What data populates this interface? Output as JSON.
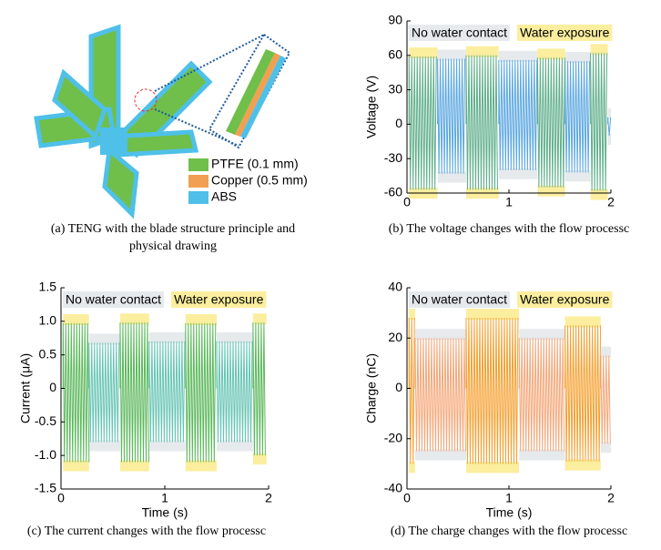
{
  "diagram": {
    "legend": [
      {
        "label": "PTFE (0.1 mm)",
        "color": "#6fbf4a"
      },
      {
        "label": "Copper (0.5 mm)",
        "color": "#f0a050"
      },
      {
        "label": "ABS",
        "color": "#4fc0e8"
      }
    ],
    "caption": [
      "(a) TENG with the blade structure principle and",
      "physical drawing"
    ]
  },
  "chart_data": [
    {
      "type": "envelope",
      "caption": "(b) The voltage changes with the flow processc",
      "ylabel": "Voltage (V)",
      "xlim": [
        0,
        2
      ],
      "xticks": [
        0,
        1,
        2
      ],
      "ylim": [
        -60,
        90
      ],
      "yticks": [
        -60,
        -30,
        0,
        30,
        60,
        90
      ],
      "series": [
        {
          "name": "No water contact",
          "color": "#5aa6e0",
          "shade": "#e6eaed",
          "segments": [
            {
              "x": [
                0.3,
                0.58
              ],
              "high": 57,
              "low": -43
            },
            {
              "x": [
                0.9,
                1.28
              ],
              "high": 56,
              "low": -40
            },
            {
              "x": [
                1.55,
                1.8
              ],
              "high": 55,
              "low": -42
            },
            {
              "x": [
                1.97,
                2.0
              ],
              "high": 6,
              "low": -10
            }
          ]
        },
        {
          "name": "Water exposure",
          "color": "#5fae8a",
          "shade": "#fbee9e",
          "segments": [
            {
              "x": [
                0.02,
                0.3
              ],
              "high": 59,
              "low": -57
            },
            {
              "x": [
                0.58,
                0.9
              ],
              "high": 60,
              "low": -57
            },
            {
              "x": [
                1.28,
                1.55
              ],
              "high": 58,
              "low": -55
            },
            {
              "x": [
                1.8,
                1.97
              ],
              "high": 62,
              "low": -58
            }
          ]
        }
      ]
    },
    {
      "type": "envelope",
      "caption": "(c) The current changes with the flow processc",
      "ylabel": "Current (μA)",
      "xlabel": "Time (s)",
      "xlim": [
        0,
        2
      ],
      "xticks": [
        0,
        1,
        2
      ],
      "ylim": [
        -1.5,
        1.5
      ],
      "yticks": [
        -1.5,
        {
          "value": -1,
          "label": "-1.0"
        },
        -0.5,
        0,
        0.5,
        {
          "value": 1,
          "label": "1.0"
        },
        1.5
      ],
      "series": [
        {
          "name": "No water contact",
          "color": "#66c4b4",
          "shade": "#e6eaed",
          "segments": [
            {
              "x": [
                0.27,
                0.57
              ],
              "high": 0.68,
              "low": -0.8
            },
            {
              "x": [
                0.85,
                1.2
              ],
              "high": 0.7,
              "low": -0.8
            },
            {
              "x": [
                1.5,
                1.85
              ],
              "high": 0.7,
              "low": -0.8
            }
          ]
        },
        {
          "name": "Water exposure",
          "color": "#5cb85c",
          "shade": "#fbee9e",
          "segments": [
            {
              "x": [
                0.02,
                0.27
              ],
              "high": 0.97,
              "low": -1.1
            },
            {
              "x": [
                0.57,
                0.85
              ],
              "high": 0.98,
              "low": -1.1
            },
            {
              "x": [
                1.2,
                1.5
              ],
              "high": 0.97,
              "low": -1.1
            },
            {
              "x": [
                1.85,
                1.98
              ],
              "high": 0.98,
              "low": -1.0
            }
          ]
        }
      ]
    },
    {
      "type": "envelope",
      "caption": "(d) The charge changes with the flow processc",
      "ylabel": "Charge (nC)",
      "xlabel": "Time (s)",
      "xlim": [
        0,
        2
      ],
      "xticks": [
        0,
        1,
        2
      ],
      "ylim": [
        -40,
        40
      ],
      "yticks": [
        -40,
        -20,
        0,
        20,
        40
      ],
      "series": [
        {
          "name": "No water contact",
          "color": "#f4a77a",
          "shade": "#e6eaed",
          "segments": [
            {
              "x": [
                0.08,
                0.58
              ],
              "high": 20,
              "low": -25
            },
            {
              "x": [
                1.1,
                1.55
              ],
              "high": 20,
              "low": -25
            },
            {
              "x": [
                1.9,
                2.0
              ],
              "high": 13,
              "low": -22
            }
          ]
        },
        {
          "name": "Water exposure",
          "color": "#f5a030",
          "shade": "#fbee9e",
          "segments": [
            {
              "x": [
                0.02,
                0.08
              ],
              "high": 28,
              "low": -30
            },
            {
              "x": [
                0.58,
                1.1
              ],
              "high": 28,
              "low": -30
            },
            {
              "x": [
                1.55,
                1.9
              ],
              "high": 25,
              "low": -29
            }
          ]
        }
      ]
    }
  ]
}
